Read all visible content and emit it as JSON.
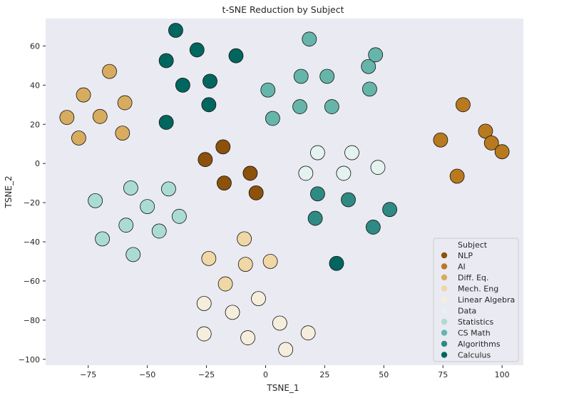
{
  "chart_data": {
    "type": "scatter",
    "title": "t-SNE Reduction by Subject",
    "xlabel": "TSNE_1",
    "ylabel": "TSNE_2",
    "xlim": [
      -93,
      109
    ],
    "ylim": [
      -103,
      74
    ],
    "xticks": [
      -75,
      -50,
      -25,
      0,
      25,
      50,
      75,
      100
    ],
    "yticks": [
      60,
      40,
      20,
      0,
      -20,
      -40,
      -60,
      -80,
      -100
    ],
    "grid": false,
    "background": "#eaeaf2",
    "legend": {
      "title": "Subject",
      "placement": "lower-right"
    },
    "series": [
      {
        "name": "NLP",
        "color": "#8c510a",
        "points": [
          [
            -25.5,
            2
          ],
          [
            -18,
            8.5
          ],
          [
            -17.5,
            -10
          ],
          [
            -6.5,
            -5
          ],
          [
            -4,
            -15
          ]
        ]
      },
      {
        "name": "AI",
        "color": "#b8791f",
        "points": [
          [
            74,
            12
          ],
          [
            81,
            -6.5
          ],
          [
            83.5,
            30
          ],
          [
            93,
            16.5
          ],
          [
            95.5,
            10.5
          ],
          [
            100,
            6
          ]
        ]
      },
      {
        "name": "Diff. Eq.",
        "color": "#d7ac5f",
        "points": [
          [
            -84,
            23.5
          ],
          [
            -79,
            13
          ],
          [
            -77,
            35
          ],
          [
            -70,
            24
          ],
          [
            -66,
            47
          ],
          [
            -60.5,
            15.5
          ],
          [
            -59.5,
            31
          ]
        ]
      },
      {
        "name": "Mech. Eng",
        "color": "#efd7a6",
        "points": [
          [
            -24,
            -48.5
          ],
          [
            -17,
            -61.5
          ],
          [
            -9,
            -38.5
          ],
          [
            -8.5,
            -51.5
          ],
          [
            2,
            -50
          ]
        ]
      },
      {
        "name": "Linear Algebra",
        "color": "#f6eedd",
        "points": [
          [
            -26,
            -71.5
          ],
          [
            -26,
            -87
          ],
          [
            -14,
            -76
          ],
          [
            -7.5,
            -89
          ],
          [
            -3,
            -69
          ],
          [
            6,
            -81.5
          ],
          [
            8.5,
            -95
          ],
          [
            18,
            -86.5
          ]
        ]
      },
      {
        "name": "Data",
        "color": "#e4f2f0",
        "points": [
          [
            17,
            -5
          ],
          [
            22,
            5.5
          ],
          [
            33,
            -5
          ],
          [
            36.5,
            5.5
          ],
          [
            47.5,
            -2
          ]
        ]
      },
      {
        "name": "Statistics",
        "color": "#abdcd2",
        "points": [
          [
            -72,
            -19
          ],
          [
            -69,
            -38.5
          ],
          [
            -59,
            -31.5
          ],
          [
            -57,
            -12.5
          ],
          [
            -56,
            -46.5
          ],
          [
            -50,
            -22
          ],
          [
            -45,
            -34.5
          ],
          [
            -41,
            -13
          ],
          [
            -36.5,
            -27
          ]
        ]
      },
      {
        "name": "CS Math",
        "color": "#66b5aa",
        "points": [
          [
            1,
            37.5
          ],
          [
            3,
            23
          ],
          [
            14.5,
            29
          ],
          [
            15,
            44.5
          ],
          [
            18.5,
            63.5
          ],
          [
            26,
            44.5
          ],
          [
            28,
            29
          ],
          [
            43.5,
            49.5
          ],
          [
            44,
            38
          ],
          [
            46.5,
            55.5
          ]
        ]
      },
      {
        "name": "Algorithms",
        "color": "#2e8a82",
        "points": [
          [
            21,
            -28
          ],
          [
            22,
            -15.5
          ],
          [
            35,
            -18.5
          ],
          [
            45.5,
            -32.5
          ],
          [
            52.5,
            -23.5
          ]
        ]
      },
      {
        "name": "Calculus",
        "color": "#01665e",
        "points": [
          [
            -42,
            52.5
          ],
          [
            -42,
            21
          ],
          [
            -38,
            68
          ],
          [
            -35,
            40
          ],
          [
            -29,
            58
          ],
          [
            -24,
            30
          ],
          [
            -23.5,
            42
          ],
          [
            -12.5,
            55
          ],
          [
            30,
            -51
          ]
        ]
      }
    ]
  }
}
